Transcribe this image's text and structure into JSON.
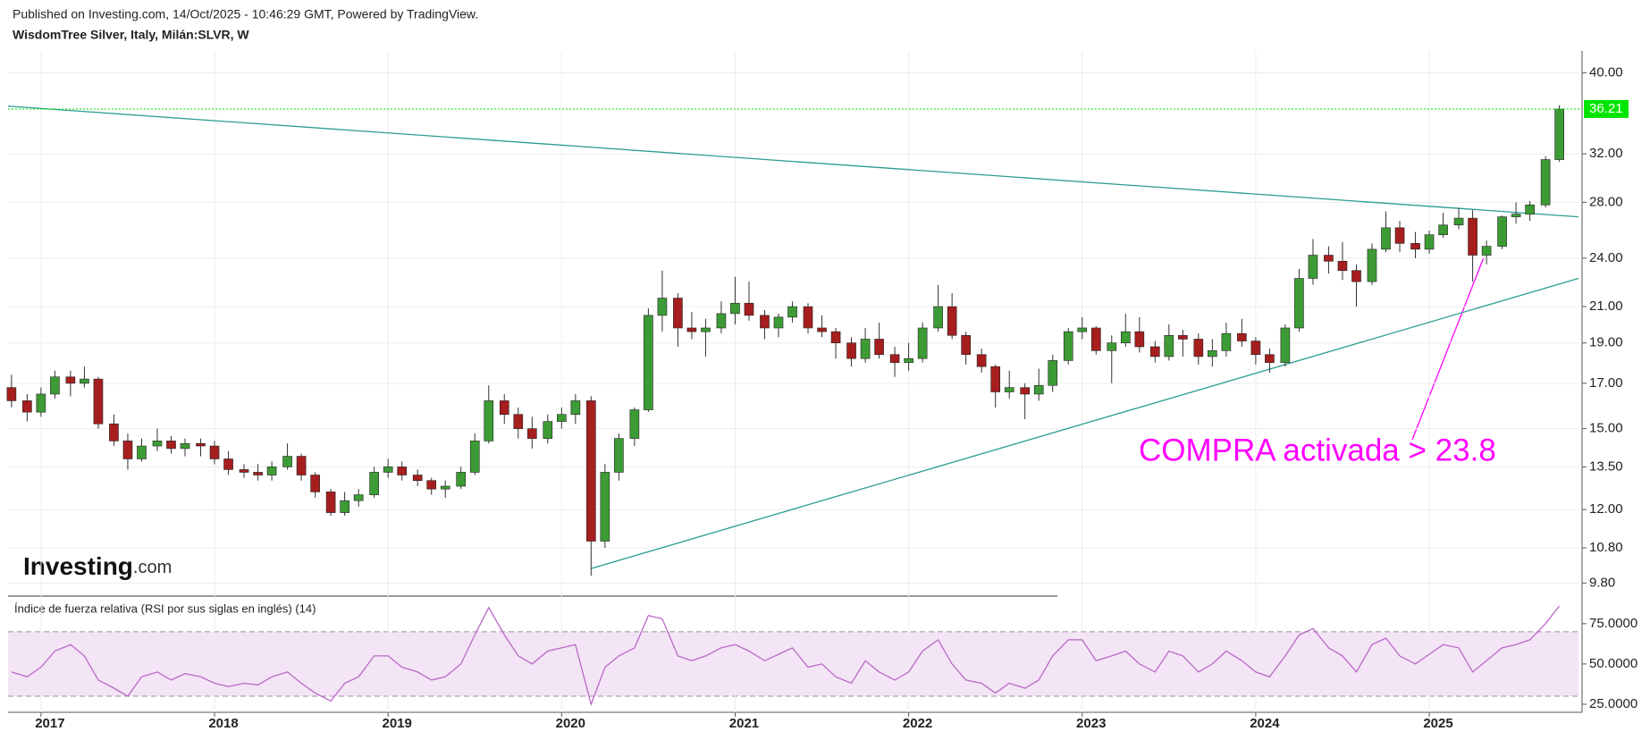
{
  "header": {
    "published": "Published on Investing.com, 14/Oct/2025 - 10:46:29 GMT, Powered by TradingView.",
    "logo": "Investing",
    "logo_suffix": ".com"
  },
  "chart_data": [
    {
      "type": "candlestick",
      "title": "WisdomTree Silver, Italy, Milán:SLVR, W",
      "log_scale": true,
      "grid": true,
      "up_color": "#3d9b35",
      "down_color": "#a61e1e",
      "xlim": [
        2016.81,
        2025.86
      ],
      "xticks": [
        2017,
        2018,
        2019,
        2020,
        2021,
        2022,
        2023,
        2024,
        2025
      ],
      "ylim": [
        9.5,
        42.5
      ],
      "yticks": [
        {
          "value": 9.8,
          "label": "9.80"
        },
        {
          "value": 10.8,
          "label": "10.80"
        },
        {
          "value": 12,
          "label": "12.00"
        },
        {
          "value": 13.5,
          "label": "13.50"
        },
        {
          "value": 15,
          "label": "15.00"
        },
        {
          "value": 17,
          "label": "17.00"
        },
        {
          "value": 19,
          "label": "19.00"
        },
        {
          "value": 21,
          "label": "21.00"
        },
        {
          "value": 24,
          "label": "24.00"
        },
        {
          "value": 28,
          "label": "28.00"
        },
        {
          "value": 32,
          "label": "32.00"
        },
        {
          "value": 40,
          "label": "40.00"
        }
      ],
      "x": [
        2016.83,
        2016.92,
        2017.0,
        2017.08,
        2017.17,
        2017.25,
        2017.33,
        2017.42,
        2017.5,
        2017.58,
        2017.67,
        2017.75,
        2017.83,
        2017.92,
        2018.0,
        2018.08,
        2018.17,
        2018.25,
        2018.33,
        2018.42,
        2018.5,
        2018.58,
        2018.67,
        2018.75,
        2018.83,
        2018.92,
        2019.0,
        2019.08,
        2019.17,
        2019.25,
        2019.33,
        2019.42,
        2019.5,
        2019.58,
        2019.67,
        2019.75,
        2019.83,
        2019.92,
        2020.0,
        2020.08,
        2020.17,
        2020.25,
        2020.33,
        2020.42,
        2020.5,
        2020.58,
        2020.67,
        2020.75,
        2020.83,
        2020.92,
        2021.0,
        2021.08,
        2021.17,
        2021.25,
        2021.33,
        2021.42,
        2021.5,
        2021.58,
        2021.67,
        2021.75,
        2021.83,
        2021.92,
        2022.0,
        2022.08,
        2022.17,
        2022.25,
        2022.33,
        2022.42,
        2022.5,
        2022.58,
        2022.67,
        2022.75,
        2022.83,
        2022.92,
        2023.0,
        2023.08,
        2023.17,
        2023.25,
        2023.33,
        2023.42,
        2023.5,
        2023.58,
        2023.67,
        2023.75,
        2023.83,
        2023.92,
        2024.0,
        2024.08,
        2024.17,
        2024.25,
        2024.33,
        2024.42,
        2024.5,
        2024.58,
        2024.67,
        2024.75,
        2024.83,
        2024.92,
        2025.0,
        2025.08,
        2025.17,
        2025.25,
        2025.33,
        2025.42,
        2025.5,
        2025.58,
        2025.67,
        2025.75
      ],
      "open": [
        16.8,
        16.2,
        15.7,
        16.5,
        17.3,
        17.0,
        17.2,
        15.2,
        14.5,
        13.8,
        14.3,
        14.5,
        14.2,
        14.4,
        14.3,
        13.8,
        13.4,
        13.3,
        13.2,
        13.5,
        13.9,
        13.2,
        12.6,
        11.9,
        12.3,
        12.5,
        13.3,
        13.5,
        13.2,
        13.0,
        12.7,
        12.8,
        13.3,
        14.5,
        16.2,
        15.6,
        15.0,
        14.6,
        15.3,
        15.6,
        16.2,
        11.0,
        13.3,
        14.6,
        15.8,
        20.5,
        21.5,
        19.8,
        19.6,
        19.8,
        20.6,
        21.2,
        20.5,
        19.8,
        20.4,
        21.0,
        19.8,
        19.6,
        19.0,
        18.2,
        19.2,
        18.4,
        18.0,
        18.2,
        19.8,
        21.0,
        19.4,
        18.4,
        17.8,
        16.6,
        16.8,
        16.5,
        16.9,
        18.1,
        19.6,
        19.8,
        18.6,
        19.0,
        19.6,
        18.8,
        18.3,
        19.4,
        19.2,
        18.3,
        18.6,
        19.5,
        19.1,
        18.4,
        18.0,
        19.8,
        22.7,
        24.2,
        23.8,
        23.2,
        22.5,
        24.6,
        26.1,
        25.0,
        24.6,
        25.6,
        26.3,
        26.8,
        24.2,
        24.8,
        26.9,
        27.1,
        27.8,
        31.5
      ],
      "high": [
        17.4,
        16.5,
        16.8,
        17.6,
        17.6,
        17.8,
        17.3,
        15.6,
        14.8,
        14.6,
        15.0,
        14.7,
        14.6,
        14.6,
        14.5,
        14.1,
        13.6,
        13.6,
        13.7,
        14.4,
        14.0,
        13.3,
        12.7,
        12.6,
        12.7,
        13.5,
        13.8,
        13.7,
        13.4,
        13.1,
        13.0,
        13.5,
        14.8,
        16.9,
        16.5,
        15.9,
        15.5,
        15.6,
        15.9,
        16.5,
        16.4,
        13.6,
        14.8,
        15.9,
        20.9,
        23.2,
        21.8,
        20.7,
        20.3,
        21.3,
        22.8,
        22.5,
        20.8,
        20.6,
        21.3,
        21.2,
        20.5,
        19.8,
        19.3,
        19.8,
        20.1,
        18.8,
        19.0,
        20.1,
        22.3,
        21.8,
        19.6,
        18.7,
        17.9,
        17.6,
        17.0,
        17.7,
        18.4,
        19.8,
        20.4,
        19.9,
        19.4,
        20.6,
        20.4,
        19.1,
        20.0,
        19.7,
        19.5,
        19.2,
        20.1,
        20.3,
        19.3,
        18.7,
        20.0,
        23.3,
        25.3,
        24.8,
        25.1,
        23.6,
        25.0,
        27.3,
        26.6,
        25.8,
        25.9,
        27.2,
        27.6,
        27.4,
        25.2,
        27.0,
        28.0,
        28.1,
        31.8,
        36.6
      ],
      "low": [
        15.9,
        15.3,
        15.5,
        16.3,
        16.4,
        16.8,
        15.0,
        14.3,
        13.4,
        13.7,
        14.1,
        14.0,
        13.9,
        13.9,
        13.6,
        13.2,
        13.1,
        13.0,
        13.0,
        13.4,
        13.0,
        12.4,
        11.8,
        11.8,
        12.1,
        12.4,
        13.1,
        13.0,
        12.8,
        12.5,
        12.4,
        12.7,
        13.2,
        14.4,
        15.2,
        14.6,
        14.2,
        14.4,
        15.0,
        15.2,
        10.0,
        10.8,
        13.0,
        14.3,
        15.7,
        19.6,
        18.8,
        19.2,
        18.3,
        19.5,
        20.0,
        20.2,
        19.2,
        19.3,
        20.1,
        19.5,
        19.3,
        18.2,
        17.8,
        18.0,
        18.2,
        17.3,
        17.6,
        18.0,
        19.6,
        19.2,
        17.9,
        17.5,
        15.9,
        16.3,
        15.4,
        16.2,
        16.6,
        17.9,
        19.2,
        18.4,
        17.0,
        18.8,
        18.5,
        18.0,
        18.1,
        18.3,
        17.9,
        17.8,
        18.3,
        18.8,
        17.9,
        17.5,
        17.8,
        19.6,
        22.3,
        23.0,
        22.6,
        21.0,
        22.3,
        24.4,
        24.4,
        24.0,
        24.3,
        25.4,
        26.0,
        22.5,
        23.6,
        24.6,
        26.4,
        26.6,
        27.6,
        31.3
      ],
      "close": [
        16.2,
        15.7,
        16.5,
        17.3,
        17.0,
        17.2,
        15.2,
        14.5,
        13.8,
        14.3,
        14.5,
        14.2,
        14.4,
        14.3,
        13.8,
        13.4,
        13.3,
        13.2,
        13.5,
        13.9,
        13.2,
        12.6,
        11.9,
        12.3,
        12.5,
        13.3,
        13.5,
        13.2,
        13.0,
        12.7,
        12.8,
        13.3,
        14.5,
        16.2,
        15.6,
        15.0,
        14.6,
        15.3,
        15.6,
        16.2,
        11.0,
        13.3,
        14.6,
        15.8,
        20.5,
        21.5,
        19.8,
        19.6,
        19.8,
        20.6,
        21.2,
        20.5,
        19.8,
        20.4,
        21.0,
        19.8,
        19.6,
        19.0,
        18.2,
        19.2,
        18.4,
        18.0,
        18.2,
        19.8,
        21.0,
        19.4,
        18.4,
        17.8,
        16.6,
        16.8,
        16.5,
        16.9,
        18.1,
        19.6,
        19.8,
        18.6,
        19.0,
        19.6,
        18.8,
        18.3,
        19.4,
        19.2,
        18.3,
        18.6,
        19.5,
        19.1,
        18.4,
        18.0,
        19.8,
        22.7,
        24.2,
        23.8,
        23.2,
        22.5,
        24.6,
        26.1,
        25.0,
        24.6,
        25.6,
        26.3,
        26.8,
        24.2,
        24.8,
        26.9,
        27.1,
        27.8,
        31.5,
        36.21
      ],
      "last_price": 36.21,
      "last_price_color": "#00e500",
      "trendline_color": "#2a9d8f",
      "trendlines": [
        {
          "x": [
            2016.81,
            2025.86
          ],
          "y": [
            36.5,
            26.9
          ]
        },
        {
          "x": [
            2020.17,
            2025.86
          ],
          "y": [
            10.2,
            22.7
          ]
        }
      ],
      "annotation": {
        "text": "COMPRA activada > 23.8",
        "color": "#ff00ff"
      }
    },
    {
      "type": "line",
      "title": "Índice de fuerza relativa (RSI por sus siglas en inglés) (14)",
      "color": "#ba68c8",
      "band": [
        30,
        70
      ],
      "band_color": "#f3e5f5",
      "xlim": [
        2016.81,
        2025.86
      ],
      "ylim": [
        20,
        91
      ],
      "yticks": [
        {
          "value": 25,
          "label": "25.0000"
        },
        {
          "value": 50,
          "label": "50.0000"
        },
        {
          "value": 75,
          "label": "75.0000"
        }
      ],
      "values": [
        45,
        42,
        48,
        58,
        62,
        55,
        40,
        35,
        30,
        42,
        45,
        40,
        44,
        42,
        38,
        36,
        38,
        37,
        42,
        45,
        38,
        32,
        27,
        38,
        42,
        55,
        55,
        48,
        45,
        40,
        42,
        50,
        68,
        85,
        68,
        55,
        50,
        58,
        60,
        62,
        25,
        48,
        55,
        60,
        80,
        78,
        55,
        52,
        55,
        60,
        62,
        58,
        52,
        56,
        60,
        48,
        50,
        42,
        38,
        52,
        45,
        40,
        45,
        58,
        65,
        50,
        40,
        38,
        32,
        38,
        35,
        40,
        55,
        65,
        65,
        52,
        55,
        58,
        50,
        45,
        58,
        55,
        45,
        50,
        58,
        52,
        45,
        42,
        55,
        68,
        72,
        60,
        55,
        45,
        62,
        66,
        55,
        50,
        56,
        62,
        60,
        45,
        52,
        60,
        62,
        65,
        75,
        86
      ]
    }
  ]
}
